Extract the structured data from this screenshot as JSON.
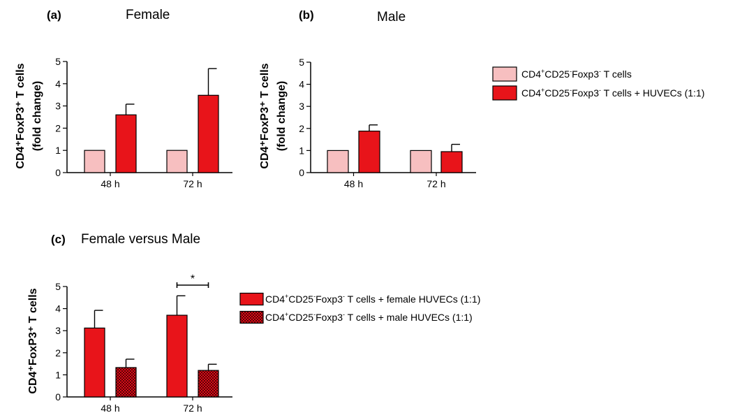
{
  "colors": {
    "light_pink": "#f7bfc0",
    "red": "#e8141a",
    "hatch_red": "#d90e18",
    "hatch_dark": "#5a0006",
    "axis": "#000000"
  },
  "chart_data": [
    {
      "id": "a",
      "type": "bar",
      "panel_letter": "(a)",
      "title": "Female",
      "ylabel_line1": "CD4⁺FoxP3⁺ T cells",
      "ylabel_line2": "(fold change)",
      "categories": [
        "48 h",
        "72 h"
      ],
      "ylim": [
        0,
        5
      ],
      "yticks": [
        "0",
        "1",
        "2",
        "3",
        "4",
        "5"
      ],
      "series": [
        {
          "fill": "light_pink",
          "values": [
            1.0,
            1.0
          ],
          "errors": [
            0,
            0
          ]
        },
        {
          "fill": "red",
          "values": [
            2.6,
            3.48
          ],
          "errors": [
            0.48,
            1.2
          ]
        }
      ]
    },
    {
      "id": "b",
      "type": "bar",
      "panel_letter": "(b)",
      "title": "Male",
      "ylabel_line1": "CD4⁺FoxP3⁺ T cells",
      "ylabel_line2": "(fold change)",
      "categories": [
        "48 h",
        "72 h"
      ],
      "ylim": [
        0,
        5
      ],
      "yticks": [
        "0",
        "1",
        "2",
        "3",
        "4",
        "5"
      ],
      "series": [
        {
          "fill": "light_pink",
          "values": [
            1.0,
            1.0
          ],
          "errors": [
            0,
            0
          ]
        },
        {
          "fill": "red",
          "values": [
            1.88,
            0.95
          ],
          "errors": [
            0.28,
            0.33
          ]
        }
      ],
      "legend": [
        {
          "fill": "light_pink",
          "parts": [
            "CD4",
            "+",
            "CD25",
            "-",
            "Foxp3",
            "-",
            " T cells"
          ]
        },
        {
          "fill": "red",
          "parts": [
            "CD4",
            "+",
            "CD25",
            "-",
            "Foxp3",
            "-",
            " T cells + HUVECs (1:1)"
          ]
        }
      ]
    },
    {
      "id": "c",
      "type": "bar",
      "panel_letter": "(c)",
      "title": "Female versus Male",
      "ylabel_line1": "CD4⁺FoxP3⁺ T cells",
      "categories": [
        "48 h",
        "72 h"
      ],
      "ylim": [
        0,
        5
      ],
      "yticks": [
        "0",
        "1",
        "2",
        "3",
        "4",
        "5"
      ],
      "series": [
        {
          "fill": "red",
          "values": [
            3.12,
            3.7
          ],
          "errors": [
            0.8,
            0.88
          ]
        },
        {
          "fill": "hatch",
          "values": [
            1.33,
            1.2
          ],
          "errors": [
            0.38,
            0.28
          ]
        }
      ],
      "annotations": [
        {
          "text": "*",
          "category_index": 1
        }
      ],
      "legend": [
        {
          "fill": "red",
          "parts": [
            "CD4",
            "+",
            "CD25",
            "-",
            "Foxp3",
            "-",
            " T cells + female HUVECs (1:1)"
          ]
        },
        {
          "fill": "hatch",
          "parts": [
            "CD4",
            "+",
            "CD25",
            "-",
            "Foxp3",
            "-",
            " T cells + male HUVECs (1:1)"
          ]
        }
      ]
    }
  ]
}
